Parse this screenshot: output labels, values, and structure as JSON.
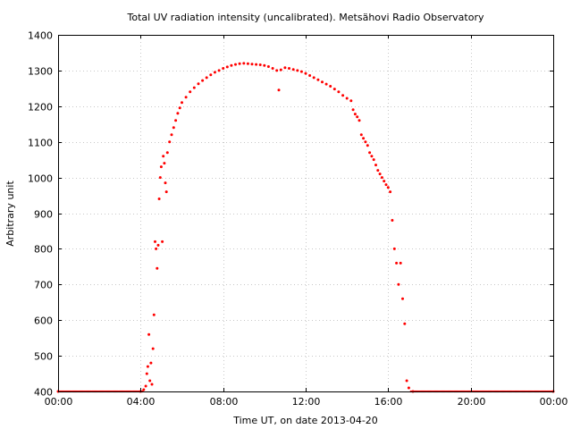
{
  "chart_data": {
    "type": "scatter",
    "title": "Total UV radiation intensity (uncalibrated). Metsähovi Radio Observatory",
    "xlabel": "Time UT, on date 2013-04-20",
    "ylabel": "Arbitrary unit",
    "xlim_hours": [
      0,
      24
    ],
    "ylim": [
      400,
      1400
    ],
    "x_ticks": [
      {
        "hour": 0,
        "label": "00:00"
      },
      {
        "hour": 4,
        "label": "04:00"
      },
      {
        "hour": 8,
        "label": "08:00"
      },
      {
        "hour": 12,
        "label": "12:00"
      },
      {
        "hour": 16,
        "label": "16:00"
      },
      {
        "hour": 20,
        "label": "20:00"
      },
      {
        "hour": 24,
        "label": "00:00"
      }
    ],
    "y_ticks": [
      400,
      500,
      600,
      700,
      800,
      900,
      1000,
      1100,
      1200,
      1300,
      1400
    ],
    "grid": true,
    "marker_color": "#ff0000",
    "points": [
      [
        0.0,
        400
      ],
      [
        4.0,
        400
      ],
      [
        4.15,
        405
      ],
      [
        4.25,
        415
      ],
      [
        4.3,
        450
      ],
      [
        4.35,
        470
      ],
      [
        4.4,
        560
      ],
      [
        4.45,
        430
      ],
      [
        4.5,
        480
      ],
      [
        4.55,
        420
      ],
      [
        4.6,
        520
      ],
      [
        4.65,
        615
      ],
      [
        4.7,
        820
      ],
      [
        4.75,
        800
      ],
      [
        4.8,
        745
      ],
      [
        4.85,
        810
      ],
      [
        4.9,
        940
      ],
      [
        4.95,
        1000
      ],
      [
        5.0,
        1030
      ],
      [
        5.05,
        820
      ],
      [
        5.1,
        1060
      ],
      [
        5.15,
        1040
      ],
      [
        5.2,
        985
      ],
      [
        5.25,
        960
      ],
      [
        5.3,
        1070
      ],
      [
        5.4,
        1100
      ],
      [
        5.5,
        1120
      ],
      [
        5.6,
        1140
      ],
      [
        5.7,
        1160
      ],
      [
        5.8,
        1180
      ],
      [
        5.9,
        1195
      ],
      [
        6.0,
        1210
      ],
      [
        6.2,
        1225
      ],
      [
        6.4,
        1240
      ],
      [
        6.6,
        1252
      ],
      [
        6.8,
        1263
      ],
      [
        7.0,
        1272
      ],
      [
        7.2,
        1280
      ],
      [
        7.4,
        1288
      ],
      [
        7.6,
        1295
      ],
      [
        7.8,
        1300
      ],
      [
        8.0,
        1306
      ],
      [
        8.2,
        1310
      ],
      [
        8.4,
        1314
      ],
      [
        8.6,
        1317
      ],
      [
        8.8,
        1319
      ],
      [
        9.0,
        1320
      ],
      [
        9.2,
        1319
      ],
      [
        9.4,
        1318
      ],
      [
        9.6,
        1317
      ],
      [
        9.8,
        1316
      ],
      [
        10.0,
        1314
      ],
      [
        10.2,
        1311
      ],
      [
        10.4,
        1306
      ],
      [
        10.6,
        1300
      ],
      [
        10.7,
        1245
      ],
      [
        10.8,
        1302
      ],
      [
        11.0,
        1308
      ],
      [
        11.2,
        1306
      ],
      [
        11.4,
        1303
      ],
      [
        11.6,
        1300
      ],
      [
        11.8,
        1297
      ],
      [
        12.0,
        1292
      ],
      [
        12.2,
        1286
      ],
      [
        12.4,
        1280
      ],
      [
        12.6,
        1274
      ],
      [
        12.8,
        1268
      ],
      [
        13.0,
        1262
      ],
      [
        13.2,
        1256
      ],
      [
        13.4,
        1248
      ],
      [
        13.6,
        1240
      ],
      [
        13.8,
        1230
      ],
      [
        14.0,
        1222
      ],
      [
        14.2,
        1215
      ],
      [
        14.3,
        1190
      ],
      [
        14.4,
        1178
      ],
      [
        14.5,
        1170
      ],
      [
        14.6,
        1160
      ],
      [
        14.7,
        1120
      ],
      [
        14.8,
        1110
      ],
      [
        14.9,
        1100
      ],
      [
        15.0,
        1090
      ],
      [
        15.1,
        1070
      ],
      [
        15.2,
        1060
      ],
      [
        15.3,
        1050
      ],
      [
        15.4,
        1035
      ],
      [
        15.5,
        1020
      ],
      [
        15.6,
        1010
      ],
      [
        15.7,
        1000
      ],
      [
        15.8,
        990
      ],
      [
        15.9,
        980
      ],
      [
        16.0,
        972
      ],
      [
        16.1,
        960
      ],
      [
        16.2,
        880
      ],
      [
        16.3,
        800
      ],
      [
        16.4,
        760
      ],
      [
        16.5,
        700
      ],
      [
        16.6,
        760
      ],
      [
        16.7,
        660
      ],
      [
        16.8,
        590
      ],
      [
        16.9,
        430
      ],
      [
        17.0,
        410
      ],
      [
        17.2,
        400
      ],
      [
        24.0,
        400
      ]
    ]
  }
}
